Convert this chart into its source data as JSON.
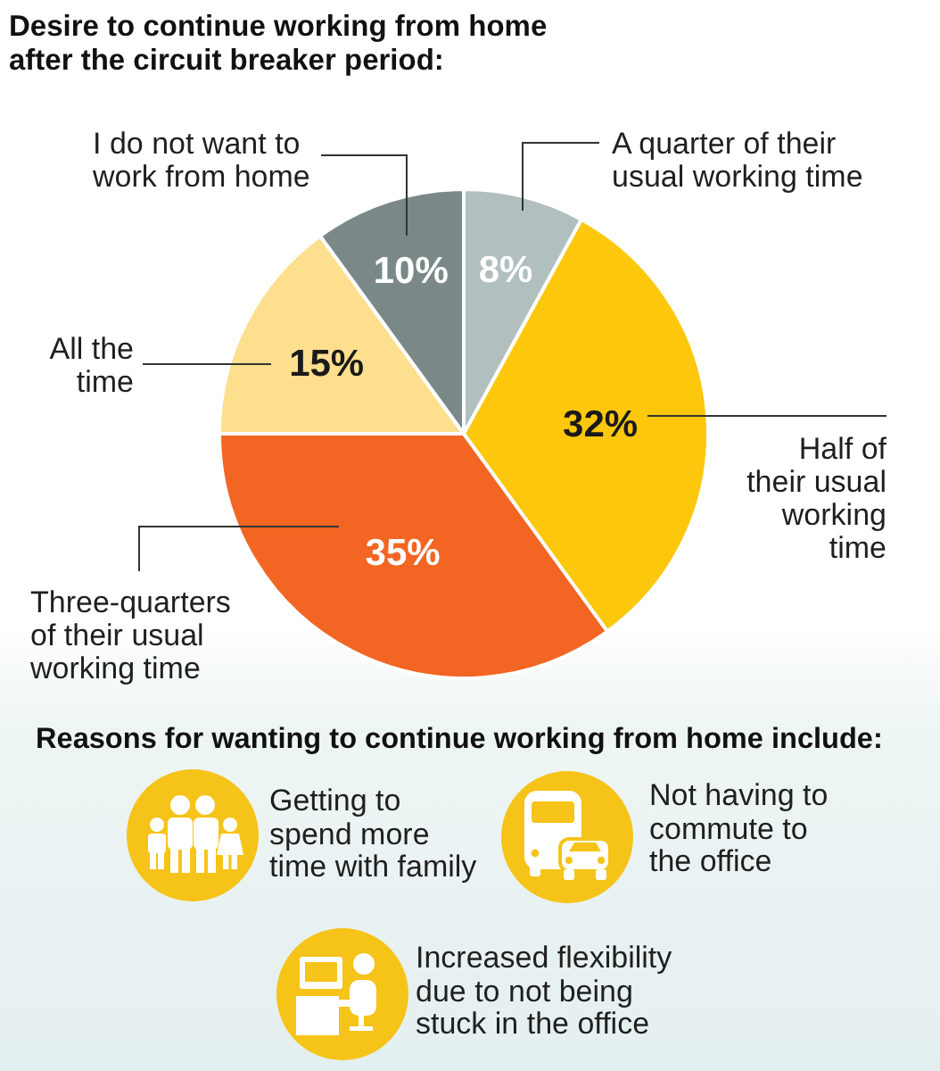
{
  "chart_data": {
    "type": "pie",
    "title": "Desire to continue working from home after the circuit breaker period:",
    "categories": [
      "A quarter of their usual working time",
      "Half of their usual working time",
      "Three-quarters of their usual working time",
      "All the time",
      "I do not want to work from home"
    ],
    "values": [
      8,
      32,
      35,
      15,
      10
    ],
    "colors": [
      "#b1bfbf",
      "#fdc70c",
      "#f26522",
      "#fddf8e",
      "#7b8888"
    ],
    "value_labels": [
      "8%",
      "32%",
      "35%",
      "15%",
      "10%"
    ],
    "annotations": [
      "Reasons for wanting to continue working from home include:",
      "Getting to spend more time with family",
      "Not having to commute to the office",
      "Increased flexibility due to not being stuck in the office"
    ]
  }
}
